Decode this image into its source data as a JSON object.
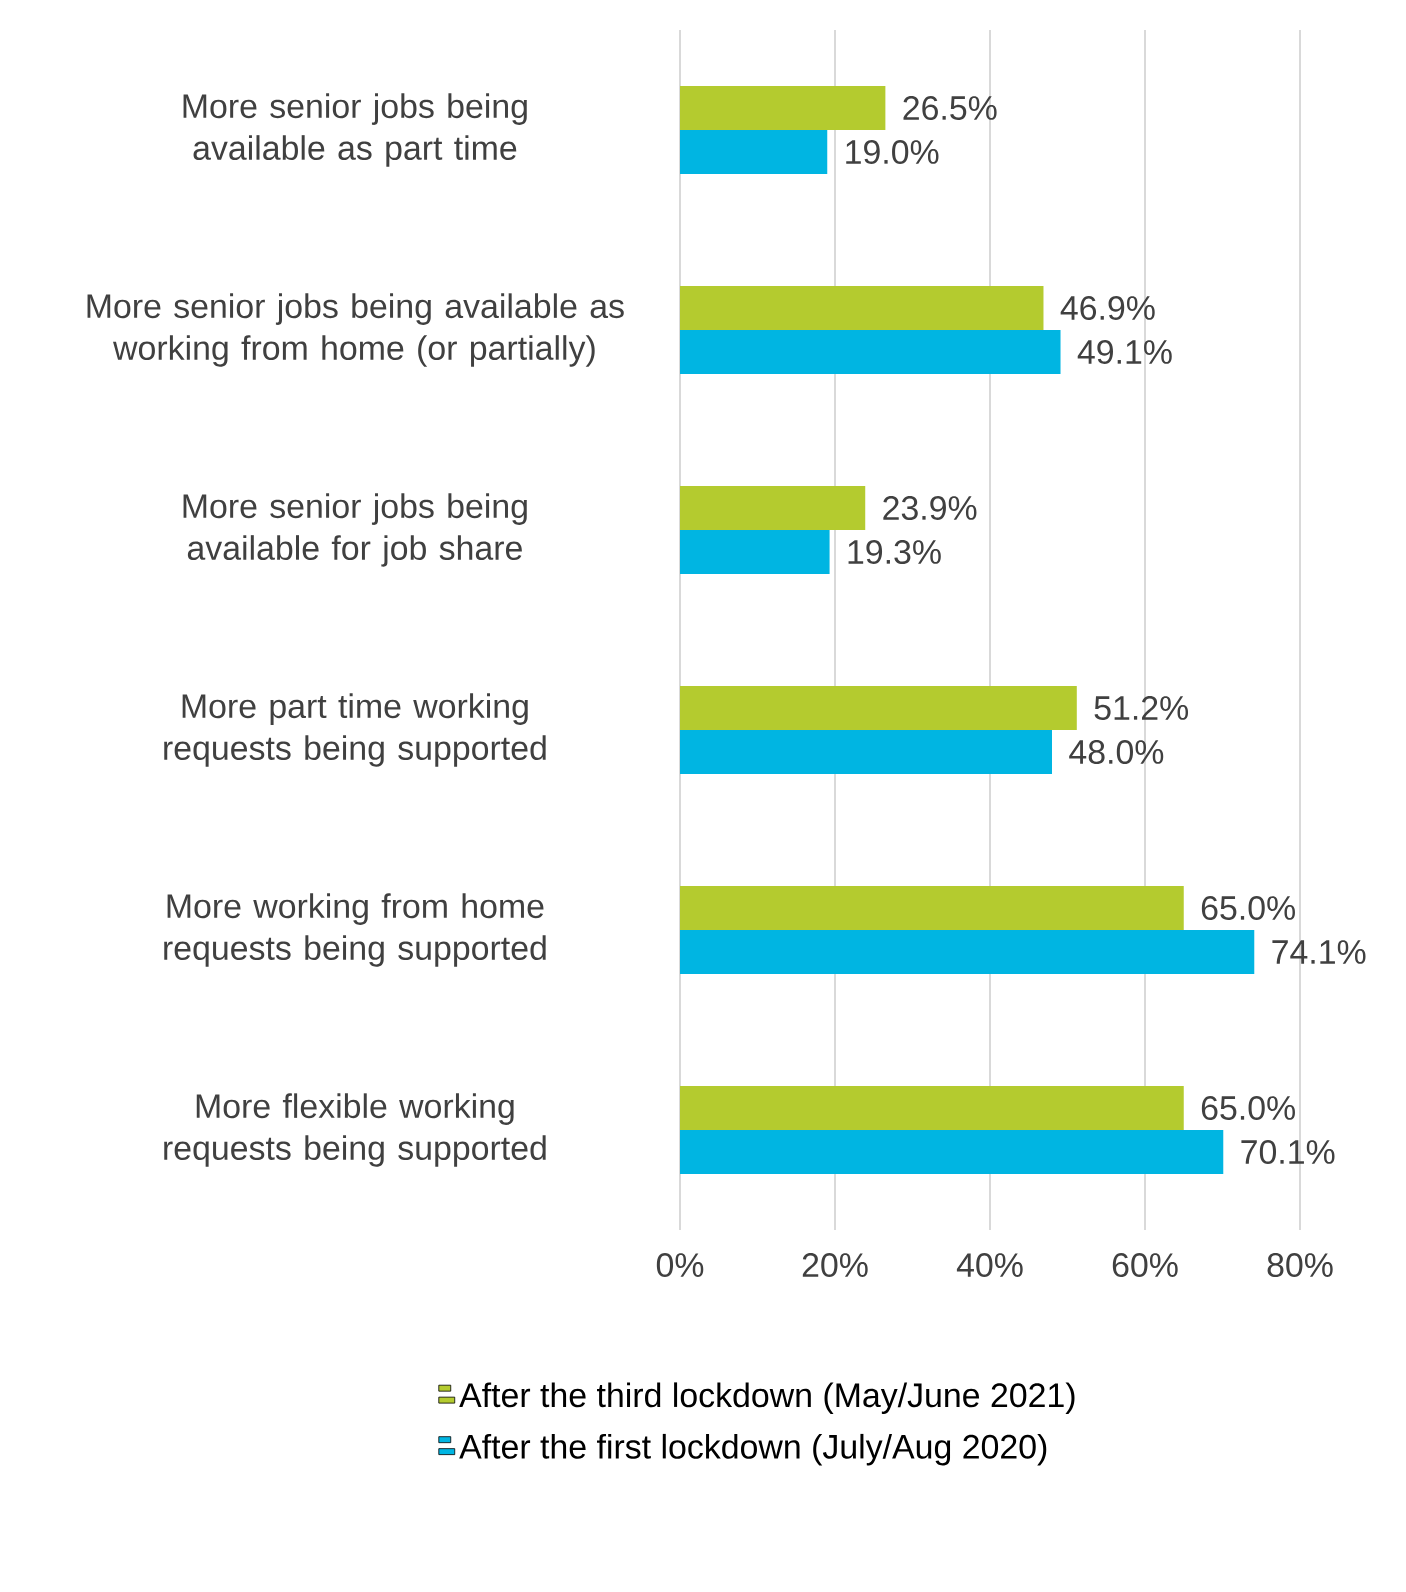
{
  "chart_data": {
    "type": "bar",
    "orientation": "horizontal",
    "categories": [
      "More senior jobs being available as part time",
      "More senior jobs being available as working from home (or partially)",
      "More senior jobs being available for job share",
      "More part time working requests being supported",
      "More working from home requests being supported",
      "More flexible working requests being supported"
    ],
    "series": [
      {
        "name": "After the third lockdown (May/June 2021)",
        "color": "#b4cb2f",
        "values": [
          26.5,
          46.9,
          23.9,
          51.2,
          65.0,
          65.0
        ],
        "value_labels": [
          "26.5%",
          "46.9%",
          "23.9%",
          "51.2%",
          "65.0%",
          "65.0%"
        ]
      },
      {
        "name": "After the first lockdown (July/Aug 2020)",
        "color": "#00b5e2",
        "values": [
          19.0,
          49.1,
          19.3,
          48.0,
          74.1,
          70.1
        ],
        "value_labels": [
          "19.0%",
          "49.1%",
          "19.3%",
          "48.0%",
          "74.1%",
          "70.1%"
        ]
      }
    ],
    "xlim": [
      0,
      80
    ],
    "xticks": [
      {
        "value": 0,
        "label": "0%"
      },
      {
        "value": 20,
        "label": "20%"
      },
      {
        "value": 40,
        "label": "40%"
      },
      {
        "value": 60,
        "label": "60%"
      },
      {
        "value": 80,
        "label": "80%"
      }
    ],
    "grid": "x",
    "legend": "bottom"
  }
}
